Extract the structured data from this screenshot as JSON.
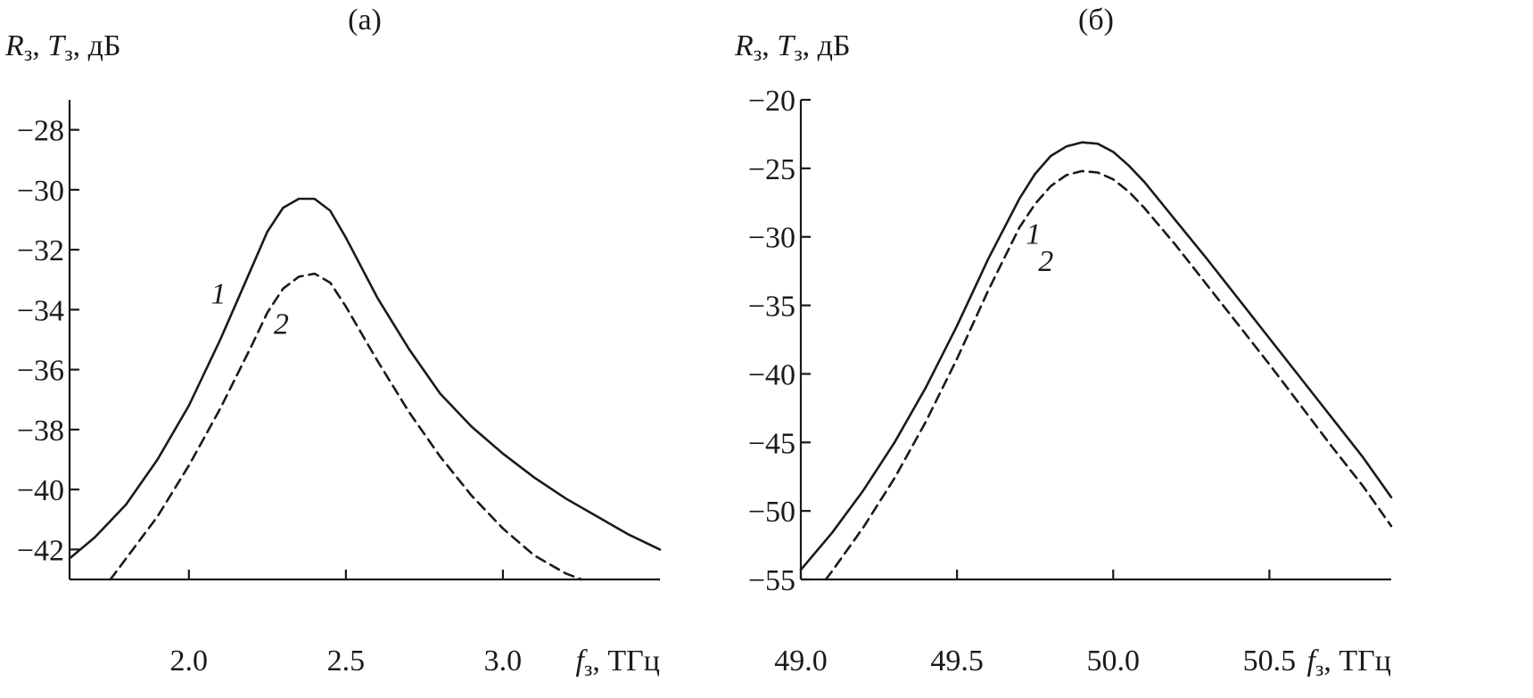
{
  "chart_data": [
    {
      "type": "line",
      "panel_label": "(а)",
      "ylabel_parts": [
        "R",
        "з",
        ", ",
        "T",
        "з",
        ", дБ"
      ],
      "xlabel_parts": [
        "f",
        "з",
        ", ТГц"
      ],
      "xlim": [
        1.62,
        3.5
      ],
      "ylim": [
        -43.0,
        -27.0
      ],
      "xticks": [
        2.0,
        2.5,
        3.0
      ],
      "xtick_labels": [
        "2.0",
        "2.5",
        "3.0"
      ],
      "yticks": [
        -28,
        -30,
        -32,
        -34,
        -36,
        -38,
        -40,
        -42
      ],
      "ytick_labels": [
        "−28",
        "−30",
        "−32",
        "−34",
        "−36",
        "−38",
        "−40",
        "−42"
      ],
      "series": [
        {
          "name": "1",
          "style": "solid",
          "color": "#1a1a1a",
          "x": [
            1.62,
            1.7,
            1.8,
            1.9,
            2.0,
            2.1,
            2.2,
            2.25,
            2.3,
            2.35,
            2.4,
            2.45,
            2.5,
            2.6,
            2.7,
            2.8,
            2.9,
            3.0,
            3.1,
            3.2,
            3.3,
            3.4,
            3.5
          ],
          "y": [
            -42.3,
            -41.6,
            -40.5,
            -39.0,
            -37.2,
            -35.0,
            -32.6,
            -31.4,
            -30.6,
            -30.3,
            -30.3,
            -30.7,
            -31.6,
            -33.6,
            -35.3,
            -36.8,
            -37.9,
            -38.8,
            -39.6,
            -40.3,
            -40.9,
            -41.5,
            -42.0
          ]
        },
        {
          "name": "2",
          "style": "dashed",
          "color": "#1a1a1a",
          "x": [
            1.75,
            1.8,
            1.9,
            2.0,
            2.1,
            2.2,
            2.25,
            2.3,
            2.35,
            2.4,
            2.45,
            2.5,
            2.6,
            2.7,
            2.8,
            2.9,
            3.0,
            3.1,
            3.2,
            3.25
          ],
          "y": [
            -43.0,
            -42.3,
            -40.9,
            -39.2,
            -37.3,
            -35.2,
            -34.1,
            -33.3,
            -32.9,
            -32.8,
            -33.1,
            -33.9,
            -35.7,
            -37.4,
            -38.9,
            -40.2,
            -41.3,
            -42.2,
            -42.8,
            -43.0
          ]
        }
      ],
      "curve_labels": [
        {
          "text": "1",
          "x": 2.07,
          "y": -33.8
        },
        {
          "text": "2",
          "x": 2.27,
          "y": -34.8
        }
      ]
    },
    {
      "type": "line",
      "panel_label": "(б)",
      "ylabel_parts": [
        "R",
        "з",
        ", ",
        "T",
        "з",
        ", дБ"
      ],
      "xlabel_parts": [
        "f",
        "з",
        ", ТГц"
      ],
      "xlim": [
        49.0,
        50.89
      ],
      "ylim": [
        -55.0,
        -20.0
      ],
      "xticks": [
        49.0,
        49.5,
        50.0,
        50.5
      ],
      "xtick_labels": [
        "49.0",
        "49.5",
        "50.0",
        "50.5"
      ],
      "yticks": [
        -20,
        -25,
        -30,
        -35,
        -40,
        -45,
        -50,
        -55
      ],
      "ytick_labels": [
        "−20",
        "−25",
        "−30",
        "−35",
        "−40",
        "−45",
        "−50",
        "−55"
      ],
      "series": [
        {
          "name": "1",
          "style": "solid",
          "color": "#1a1a1a",
          "x": [
            49.0,
            49.1,
            49.2,
            49.3,
            49.4,
            49.5,
            49.6,
            49.7,
            49.75,
            49.8,
            49.85,
            49.9,
            49.95,
            50.0,
            50.05,
            50.1,
            50.2,
            50.3,
            50.4,
            50.5,
            50.6,
            50.7,
            50.8,
            50.89
          ],
          "y": [
            -54.3,
            -51.6,
            -48.5,
            -45.0,
            -41.0,
            -36.5,
            -31.6,
            -27.2,
            -25.4,
            -24.1,
            -23.4,
            -23.1,
            -23.2,
            -23.8,
            -24.8,
            -26.0,
            -28.8,
            -31.6,
            -34.5,
            -37.4,
            -40.3,
            -43.2,
            -46.1,
            -49.0
          ]
        },
        {
          "name": "2",
          "style": "dashed",
          "color": "#1a1a1a",
          "x": [
            49.08,
            49.1,
            49.2,
            49.3,
            49.4,
            49.5,
            49.6,
            49.7,
            49.75,
            49.8,
            49.85,
            49.9,
            49.95,
            50.0,
            50.05,
            50.1,
            50.2,
            50.3,
            50.4,
            50.5,
            50.6,
            50.7,
            50.8,
            50.89
          ],
          "y": [
            -55.0,
            -54.4,
            -51.2,
            -47.6,
            -43.5,
            -38.9,
            -33.9,
            -29.3,
            -27.6,
            -26.3,
            -25.5,
            -25.2,
            -25.3,
            -25.8,
            -26.7,
            -27.9,
            -30.6,
            -33.5,
            -36.4,
            -39.3,
            -42.3,
            -45.3,
            -48.2,
            -51.1
          ]
        }
      ],
      "curve_labels": [
        {
          "text": "1",
          "x": 49.72,
          "y": -30.5
        },
        {
          "text": "2",
          "x": 49.76,
          "y": -32.5
        }
      ]
    }
  ]
}
